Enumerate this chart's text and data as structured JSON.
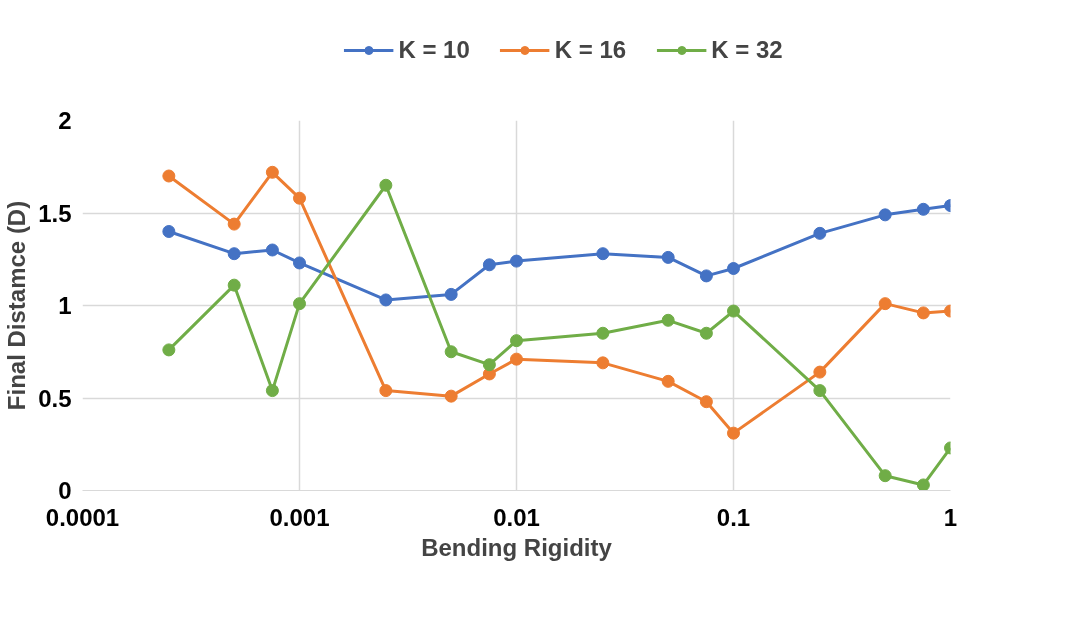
{
  "chart_data": {
    "type": "line",
    "xlabel": "Bending Rigidity",
    "ylabel": "Final Distamce (D)",
    "x": [
      0.00025,
      0.0005,
      0.00075,
      0.001,
      0.0025,
      0.005,
      0.0075,
      0.01,
      0.025,
      0.05,
      0.075,
      0.1,
      0.25,
      0.5,
      0.75,
      1
    ],
    "series": [
      {
        "name": "K = 10",
        "color": "#4472c4",
        "values": [
          1.4,
          1.28,
          1.3,
          1.23,
          1.03,
          1.06,
          1.22,
          1.24,
          1.28,
          1.26,
          1.16,
          1.2,
          1.39,
          1.49,
          1.52,
          1.54
        ]
      },
      {
        "name": "K = 16",
        "color": "#ed7d31",
        "values": [
          1.7,
          1.44,
          1.72,
          1.58,
          0.54,
          0.51,
          0.63,
          0.71,
          0.69,
          0.59,
          0.48,
          0.31,
          0.64,
          1.01,
          0.96,
          0.97
        ]
      },
      {
        "name": "K = 32",
        "color": "#70ad47",
        "values": [
          0.76,
          1.11,
          0.54,
          1.01,
          1.65,
          0.75,
          0.68,
          0.81,
          0.85,
          0.92,
          0.85,
          0.97,
          0.54,
          0.08,
          0.03,
          0.23
        ]
      }
    ],
    "log": "x",
    "xlim": [
      0.0001,
      1
    ],
    "xticks": [
      0.0001,
      0.001,
      0.01,
      0.1,
      1
    ],
    "ylim": [
      0,
      2
    ],
    "yticks": [
      0,
      0.5,
      1,
      1.5,
      2
    ],
    "grid": true,
    "legend": "top",
    "marker": "circle",
    "line_style": "solid"
  }
}
